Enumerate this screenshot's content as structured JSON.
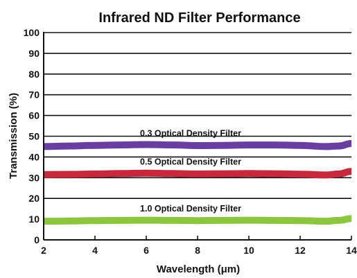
{
  "chart_data": {
    "type": "line",
    "title": "Infrared ND Filter Performance",
    "xlabel": "Wavelength (μm)",
    "ylabel": "Transmission (%)",
    "xlim": [
      2,
      14
    ],
    "ylim": [
      0,
      100
    ],
    "xticks": [
      "2",
      "4",
      "6",
      "8",
      "10",
      "12",
      "14"
    ],
    "yticks": [
      "0",
      "10",
      "20",
      "30",
      "40",
      "50",
      "60",
      "70",
      "80",
      "90",
      "100"
    ],
    "grid": "horizontal",
    "series": [
      {
        "name": "0.3 Optical Density Filter",
        "color": "#6a3ea1",
        "x": [
          2,
          3,
          4,
          5,
          6,
          7,
          8,
          9,
          10,
          11,
          12,
          13,
          13.5,
          14
        ],
        "y": [
          45,
          45.3,
          45.6,
          45.8,
          46,
          45.8,
          45.5,
          45.6,
          45.8,
          45.8,
          45.6,
          45,
          45.3,
          46.5
        ]
      },
      {
        "name": "0.5 Optical Density Filter",
        "color": "#c8283c",
        "x": [
          2,
          3,
          4,
          5,
          6,
          7,
          8,
          9,
          10,
          11,
          12,
          13,
          13.5,
          14
        ],
        "y": [
          31.5,
          31.6,
          31.8,
          32,
          32.2,
          32,
          31.8,
          31.9,
          32,
          31.9,
          31.7,
          31.3,
          31.8,
          33
        ]
      },
      {
        "name": "1.0 Optical Density Filter",
        "color": "#8cc63f",
        "x": [
          2,
          3,
          4,
          5,
          6,
          7,
          8,
          9,
          10,
          11,
          12,
          13,
          13.5,
          14
        ],
        "y": [
          9,
          9.1,
          9.3,
          9.4,
          9.5,
          9.4,
          9.3,
          9.4,
          9.5,
          9.4,
          9.3,
          9,
          9.4,
          10.3
        ]
      }
    ]
  }
}
